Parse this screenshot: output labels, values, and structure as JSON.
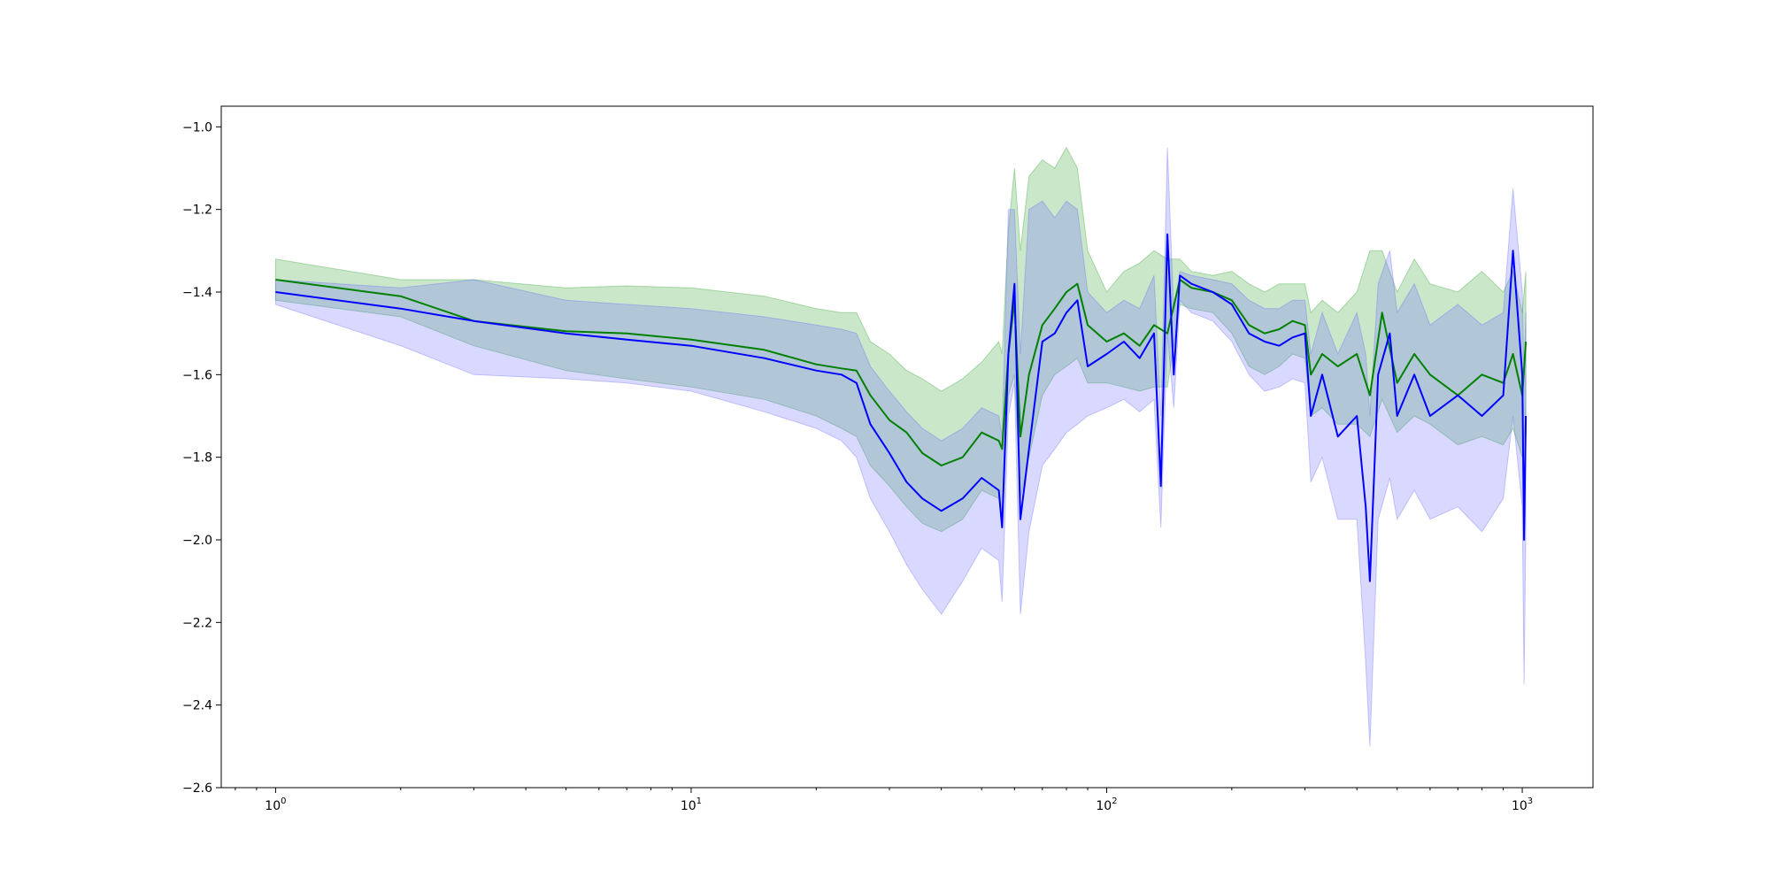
{
  "chart_data": {
    "type": "line",
    "title": "",
    "xlabel": "",
    "ylabel": "",
    "xscale": "log",
    "xlim": [
      0.74,
      1480
    ],
    "ylim": [
      -2.6,
      -0.95
    ],
    "grid": false,
    "legend": "none",
    "x_ticks": [
      {
        "value": 1,
        "base": "10",
        "exp": "0"
      },
      {
        "value": 10,
        "base": "10",
        "exp": "1"
      },
      {
        "value": 100,
        "base": "10",
        "exp": "2"
      },
      {
        "value": 1000,
        "base": "10",
        "exp": "3"
      }
    ],
    "y_ticks": [
      {
        "value": -1.0,
        "label": "−1.0"
      },
      {
        "value": -1.2,
        "label": "−1.2"
      },
      {
        "value": -1.4,
        "label": "−1.4"
      },
      {
        "value": -1.6,
        "label": "−1.6"
      },
      {
        "value": -1.8,
        "label": "−1.8"
      },
      {
        "value": -2.0,
        "label": "−2.0"
      },
      {
        "value": -2.2,
        "label": "−2.2"
      },
      {
        "value": -2.4,
        "label": "−2.4"
      },
      {
        "value": -2.6,
        "label": "−2.6"
      }
    ],
    "series": [
      {
        "color": "#008000",
        "band_color": "#2ca02c",
        "x": [
          1,
          2,
          3,
          5,
          7,
          10,
          15,
          20,
          23,
          25,
          27,
          30,
          33,
          36,
          40,
          45,
          50,
          55,
          56,
          58,
          60,
          62,
          65,
          70,
          75,
          80,
          85,
          90,
          100,
          110,
          120,
          130,
          140,
          150,
          160,
          180,
          200,
          220,
          240,
          260,
          280,
          300,
          310,
          330,
          360,
          400,
          430,
          460,
          500,
          550,
          600,
          700,
          800,
          900,
          950,
          1000,
          1020
        ],
        "y": [
          -1.37,
          -1.41,
          -1.47,
          -1.495,
          -1.5,
          -1.515,
          -1.54,
          -1.575,
          -1.585,
          -1.59,
          -1.65,
          -1.71,
          -1.74,
          -1.79,
          -1.82,
          -1.8,
          -1.74,
          -1.76,
          -1.78,
          -1.55,
          -1.42,
          -1.75,
          -1.6,
          -1.48,
          -1.44,
          -1.4,
          -1.38,
          -1.48,
          -1.52,
          -1.5,
          -1.53,
          -1.48,
          -1.5,
          -1.37,
          -1.39,
          -1.4,
          -1.42,
          -1.48,
          -1.5,
          -1.49,
          -1.47,
          -1.48,
          -1.6,
          -1.55,
          -1.58,
          -1.55,
          -1.65,
          -1.45,
          -1.62,
          -1.55,
          -1.6,
          -1.65,
          -1.6,
          -1.62,
          -1.55,
          -1.65,
          -1.52
        ],
        "lower": [
          -1.42,
          -1.46,
          -1.53,
          -1.59,
          -1.61,
          -1.63,
          -1.66,
          -1.7,
          -1.73,
          -1.75,
          -1.82,
          -1.87,
          -1.92,
          -1.96,
          -1.98,
          -1.95,
          -1.88,
          -1.9,
          -1.97,
          -1.65,
          -1.6,
          -1.9,
          -1.8,
          -1.65,
          -1.6,
          -1.58,
          -1.56,
          -1.62,
          -1.62,
          -1.63,
          -1.64,
          -1.63,
          -1.63,
          -1.43,
          -1.44,
          -1.45,
          -1.5,
          -1.58,
          -1.6,
          -1.58,
          -1.55,
          -1.56,
          -1.7,
          -1.68,
          -1.72,
          -1.72,
          -1.75,
          -1.66,
          -1.74,
          -1.7,
          -1.72,
          -1.77,
          -1.75,
          -1.77,
          -1.73,
          -1.8,
          -1.7
        ],
        "upper": [
          -1.32,
          -1.37,
          -1.37,
          -1.39,
          -1.385,
          -1.39,
          -1.41,
          -1.44,
          -1.45,
          -1.45,
          -1.52,
          -1.55,
          -1.59,
          -1.61,
          -1.64,
          -1.61,
          -1.57,
          -1.52,
          -1.55,
          -1.25,
          -1.1,
          -1.3,
          -1.12,
          -1.08,
          -1.1,
          -1.05,
          -1.1,
          -1.3,
          -1.4,
          -1.35,
          -1.33,
          -1.3,
          -1.32,
          -1.32,
          -1.35,
          -1.36,
          -1.35,
          -1.38,
          -1.4,
          -1.38,
          -1.38,
          -1.38,
          -1.45,
          -1.42,
          -1.45,
          -1.4,
          -1.3,
          -1.3,
          -1.4,
          -1.32,
          -1.38,
          -1.4,
          -1.35,
          -1.4,
          -1.35,
          -1.45,
          -1.35
        ]
      },
      {
        "color": "#0000ff",
        "band_color": "#6666ff",
        "x": [
          1,
          2,
          3,
          5,
          7,
          10,
          15,
          20,
          23,
          25,
          27,
          30,
          33,
          36,
          40,
          45,
          50,
          55,
          56,
          58,
          60,
          62,
          65,
          70,
          75,
          80,
          85,
          90,
          100,
          110,
          120,
          130,
          135,
          140,
          145,
          150,
          160,
          180,
          200,
          220,
          240,
          260,
          280,
          300,
          310,
          330,
          360,
          400,
          420,
          430,
          450,
          480,
          500,
          550,
          600,
          700,
          800,
          900,
          950,
          1000,
          1010,
          1020
        ],
        "y": [
          -1.4,
          -1.44,
          -1.47,
          -1.5,
          -1.515,
          -1.53,
          -1.56,
          -1.59,
          -1.6,
          -1.62,
          -1.72,
          -1.79,
          -1.86,
          -1.9,
          -1.93,
          -1.9,
          -1.85,
          -1.88,
          -1.97,
          -1.55,
          -1.38,
          -1.95,
          -1.78,
          -1.52,
          -1.5,
          -1.45,
          -1.42,
          -1.58,
          -1.55,
          -1.52,
          -1.56,
          -1.5,
          -1.87,
          -1.26,
          -1.6,
          -1.36,
          -1.38,
          -1.4,
          -1.43,
          -1.5,
          -1.52,
          -1.53,
          -1.51,
          -1.5,
          -1.7,
          -1.6,
          -1.75,
          -1.7,
          -1.92,
          -2.1,
          -1.6,
          -1.5,
          -1.7,
          -1.6,
          -1.7,
          -1.65,
          -1.7,
          -1.65,
          -1.3,
          -1.6,
          -2.0,
          -1.7
        ],
        "lower": [
          -1.43,
          -1.53,
          -1.6,
          -1.61,
          -1.62,
          -1.64,
          -1.69,
          -1.73,
          -1.76,
          -1.8,
          -1.9,
          -1.98,
          -2.06,
          -2.12,
          -2.18,
          -2.1,
          -2.02,
          -2.05,
          -2.15,
          -1.7,
          -1.62,
          -2.18,
          -1.98,
          -1.82,
          -1.78,
          -1.74,
          -1.72,
          -1.7,
          -1.68,
          -1.66,
          -1.69,
          -1.66,
          -1.97,
          -1.5,
          -1.68,
          -1.42,
          -1.45,
          -1.47,
          -1.52,
          -1.6,
          -1.64,
          -1.63,
          -1.61,
          -1.62,
          -1.86,
          -1.8,
          -1.95,
          -1.95,
          -2.3,
          -2.5,
          -1.95,
          -1.85,
          -1.95,
          -1.88,
          -1.95,
          -1.92,
          -1.98,
          -1.9,
          -1.7,
          -1.92,
          -2.35,
          -1.98
        ],
        "upper": [
          -1.37,
          -1.39,
          -1.37,
          -1.42,
          -1.43,
          -1.44,
          -1.46,
          -1.48,
          -1.49,
          -1.5,
          -1.58,
          -1.64,
          -1.69,
          -1.73,
          -1.76,
          -1.73,
          -1.68,
          -1.7,
          -1.75,
          -1.2,
          -1.2,
          -1.55,
          -1.2,
          -1.18,
          -1.22,
          -1.18,
          -1.2,
          -1.4,
          -1.45,
          -1.42,
          -1.44,
          -1.36,
          -1.7,
          -1.05,
          -1.45,
          -1.35,
          -1.36,
          -1.37,
          -1.38,
          -1.42,
          -1.44,
          -1.44,
          -1.42,
          -1.42,
          -1.55,
          -1.45,
          -1.55,
          -1.45,
          -1.55,
          -1.7,
          -1.38,
          -1.3,
          -1.45,
          -1.38,
          -1.48,
          -1.43,
          -1.48,
          -1.45,
          -1.15,
          -1.4,
          -1.6,
          -1.45
        ]
      }
    ]
  },
  "style": {
    "background": "#ffffff",
    "axis_color": "#000000",
    "band_opacity": 0.25
  }
}
